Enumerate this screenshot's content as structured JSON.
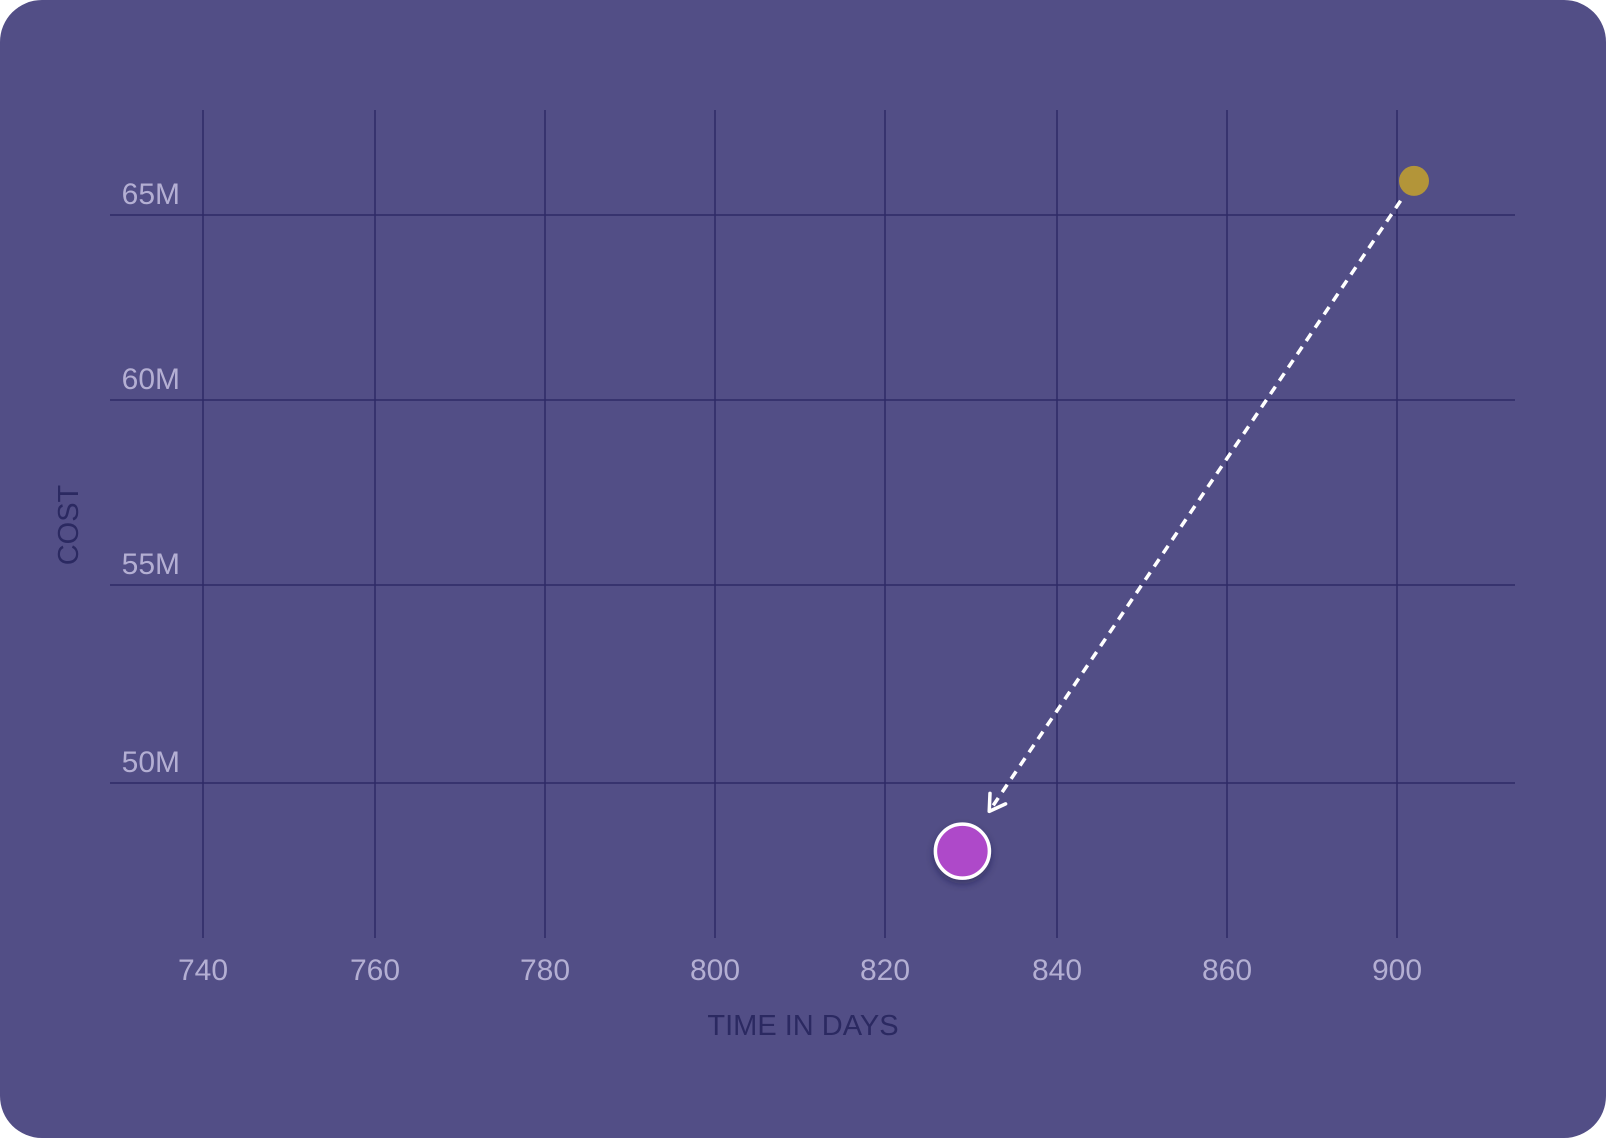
{
  "chart_data": {
    "type": "scatter",
    "xlabel": "TIME IN DAYS",
    "ylabel": "COST",
    "x_ticks": [
      740,
      760,
      780,
      800,
      820,
      840,
      860,
      900
    ],
    "x_tick_labels": [
      "740",
      "760",
      "780",
      "800",
      "820",
      "840",
      "860",
      "900"
    ],
    "y_ticks": [
      65000000,
      60000000,
      55000000,
      50000000
    ],
    "y_tick_labels": [
      "65M",
      "60M",
      "55M",
      "50M"
    ],
    "grid": true,
    "points": [
      {
        "x": 904,
        "y": 65900000,
        "color": "#b39539",
        "role": "start"
      },
      {
        "x": 829,
        "y": 48200000,
        "color": "#ae48c9",
        "role": "end"
      }
    ],
    "annotation": {
      "type": "dashed-arrow",
      "from": 0,
      "to": 1,
      "color": "#ffffff"
    },
    "colors": {
      "background": "#524e86",
      "grid": "#2e2a66",
      "tick_text": "#b4afd3",
      "axis_title": "#2b2961"
    }
  }
}
